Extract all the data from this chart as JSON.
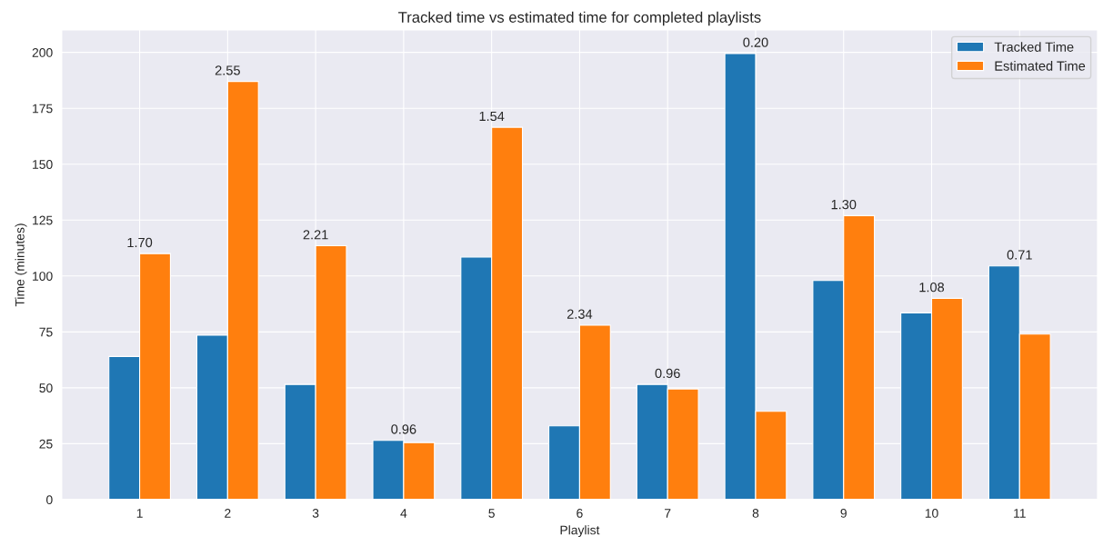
{
  "chart_data": {
    "type": "bar",
    "title": "Tracked time vs estimated time for completed playlists",
    "xlabel": "Playlist",
    "ylabel": "Time (minutes)",
    "categories": [
      "1",
      "2",
      "3",
      "4",
      "5",
      "6",
      "7",
      "8",
      "9",
      "10",
      "11"
    ],
    "series": [
      {
        "name": "Tracked Time",
        "color": "#1f77b4",
        "values": [
          64,
          73.5,
          51.5,
          26.5,
          108.5,
          33,
          51.5,
          199.5,
          98,
          83.5,
          104.5
        ]
      },
      {
        "name": "Estimated Time",
        "color": "#ff7f0e",
        "values": [
          110,
          187,
          113.5,
          25.5,
          166.5,
          78,
          49.5,
          39.5,
          127,
          90,
          74
        ]
      }
    ],
    "ylim": [
      0,
      210
    ],
    "yticks": [
      0,
      25,
      50,
      75,
      100,
      125,
      150,
      175,
      200
    ],
    "grid": true,
    "legend": "top right",
    "annotations": [
      {
        "text": "1.70",
        "x": "1",
        "y": 110
      },
      {
        "text": "2.55",
        "x": "2",
        "y": 187
      },
      {
        "text": "2.21",
        "x": "3",
        "y": 113.5
      },
      {
        "text": "0.96",
        "x": "4",
        "y": 26.5
      },
      {
        "text": "1.54",
        "x": "5",
        "y": 166.5
      },
      {
        "text": "2.34",
        "x": "6",
        "y": 78
      },
      {
        "text": "0.96",
        "x": "7",
        "y": 51.5
      },
      {
        "text": "0.20",
        "x": "8",
        "y": 199.5
      },
      {
        "text": "1.30",
        "x": "9",
        "y": 127
      },
      {
        "text": "1.08",
        "x": "10",
        "y": 90
      },
      {
        "text": "0.71",
        "x": "11",
        "y": 104.5
      }
    ]
  }
}
